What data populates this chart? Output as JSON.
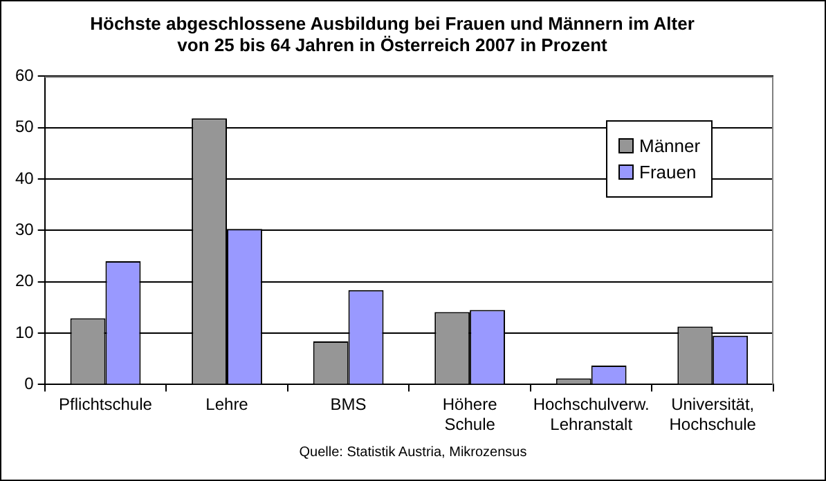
{
  "chart_data": {
    "type": "bar",
    "title": "Höchste abgeschlossene Ausbildung bei Frauen und Männern im Alter\nvon 25 bis 64 Jahren in Österreich 2007 in Prozent",
    "categories": [
      "Pflichtschule",
      "Lehre",
      "BMS",
      "Höhere\nSchule",
      "Hochschulverw.\nLehranstalt",
      "Universität,\nHochschule"
    ],
    "series": [
      {
        "name": "Männer",
        "color": "#969696",
        "values": [
          12.9,
          51.8,
          8.4,
          14.1,
          1.2,
          11.3
        ]
      },
      {
        "name": "Frauen",
        "color": "#9999ff",
        "values": [
          24.0,
          30.3,
          18.4,
          14.5,
          3.7,
          9.5
        ]
      }
    ],
    "ylim": [
      0,
      60
    ],
    "yticks": [
      0,
      10,
      20,
      30,
      40,
      50,
      60
    ],
    "grid": "y",
    "legend": "right",
    "annotations": [
      "Quelle: Statistik Austria, Mikrozensus"
    ]
  }
}
